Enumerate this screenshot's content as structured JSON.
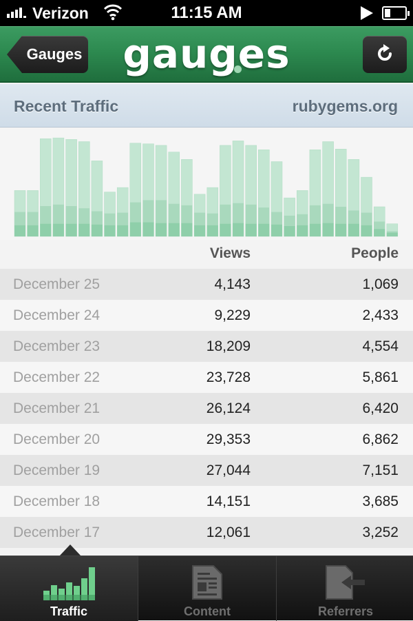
{
  "status_bar": {
    "carrier": "Verizon",
    "time": "11:15 AM"
  },
  "nav": {
    "back_label": "Gauges",
    "title": "gauges"
  },
  "section": {
    "title": "Recent Traffic",
    "site": "rubygems.org"
  },
  "colors": {
    "nav_green": "#2d8a50",
    "bar_light": "#c3e6d2",
    "bar_mid": "#a9d9bd",
    "bar_dark": "#8fcfaa",
    "active_tab": "#ffffff",
    "inactive_tab": "#777777"
  },
  "table": {
    "columns": [
      "Views",
      "People"
    ],
    "rows": [
      {
        "date": "December 25",
        "views": "4,143",
        "people": "1,069"
      },
      {
        "date": "December 24",
        "views": "9,229",
        "people": "2,433"
      },
      {
        "date": "December 23",
        "views": "18,209",
        "people": "4,554"
      },
      {
        "date": "December 22",
        "views": "23,728",
        "people": "5,861"
      },
      {
        "date": "December 21",
        "views": "26,124",
        "people": "6,420"
      },
      {
        "date": "December 20",
        "views": "29,353",
        "people": "6,862"
      },
      {
        "date": "December 19",
        "views": "27,044",
        "people": "7,151"
      },
      {
        "date": "December 18",
        "views": "14,151",
        "people": "3,685"
      },
      {
        "date": "December 17",
        "views": "12,061",
        "people": "3,252"
      }
    ]
  },
  "chart_data": {
    "type": "bar",
    "series": [
      {
        "values": [
          62,
          62,
          132,
          133,
          131,
          128,
          102,
          60,
          66,
          126,
          125,
          123,
          114,
          104,
          57,
          66,
          123,
          129,
          123,
          117,
          101,
          52,
          62,
          117,
          128,
          118,
          104,
          80,
          40,
          17
        ]
      },
      {
        "values": [
          33,
          33,
          41,
          43,
          41,
          38,
          34,
          31,
          32,
          46,
          49,
          49,
          44,
          42,
          32,
          31,
          43,
          45,
          43,
          39,
          33,
          28,
          30,
          42,
          44,
          40,
          35,
          32,
          20,
          7
        ]
      },
      {
        "values": [
          15,
          15,
          17,
          17,
          17,
          17,
          16,
          15,
          15,
          19,
          19,
          18,
          18,
          18,
          15,
          15,
          17,
          18,
          17,
          17,
          16,
          14,
          15,
          17,
          18,
          17,
          17,
          15,
          10,
          5
        ]
      }
    ],
    "ylim": [
      0,
      135
    ]
  },
  "tabs": [
    {
      "label": "Traffic",
      "active": true
    },
    {
      "label": "Content",
      "active": false
    },
    {
      "label": "Referrers",
      "active": false
    }
  ]
}
